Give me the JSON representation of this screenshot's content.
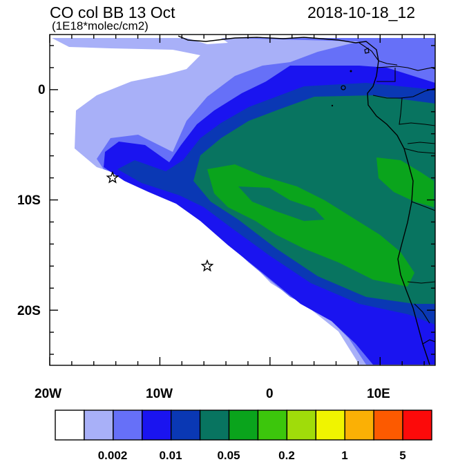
{
  "header": {
    "title": "CO col BB 13 Oct",
    "datetime": "2018-10-18_12",
    "units": "(1E18*molec/cm2)"
  },
  "axes": {
    "x_ticks": [
      "20W",
      "10W",
      "0",
      "10E"
    ],
    "y_ticks": [
      "0",
      "10S",
      "20S"
    ]
  },
  "legend": {
    "colors": [
      "#ffffff",
      "#a8b0f8",
      "#6670f8",
      "#1a14f0",
      "#0a38b4",
      "#087460",
      "#0aa41c",
      "#3cc60c",
      "#a0dc0a",
      "#f0f400",
      "#fbb005",
      "#fc5a00",
      "#fc0a0a"
    ],
    "labels": [
      "0.002",
      "0.01",
      "0.05",
      "0.2",
      "1",
      "5"
    ]
  },
  "markers": [
    {
      "name": "star-marker-west",
      "lon": -14.3,
      "lat": -8.0
    },
    {
      "name": "star-marker-south",
      "lon": -5.7,
      "lat": -16.0
    }
  ],
  "map_extent": {
    "lon": [
      -20,
      15
    ],
    "lat": [
      -25,
      5
    ]
  }
}
